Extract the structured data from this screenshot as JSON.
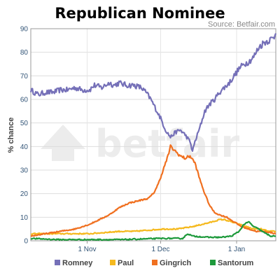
{
  "chart_data": {
    "type": "line",
    "title": "Republican Nominee",
    "source": "Source: Betfair.com",
    "watermark": "betfair",
    "ylabel": "% chance",
    "xlabel": "",
    "ylim": [
      0,
      90
    ],
    "yticks": [
      0,
      10,
      20,
      30,
      40,
      50,
      60,
      70,
      80,
      90
    ],
    "xlim": [
      "2011-10-09",
      "2012-01-17"
    ],
    "xticks": [
      {
        "date": "2011-11-01",
        "label": "1 Nov"
      },
      {
        "date": "2011-12-01",
        "label": "1 Dec"
      },
      {
        "date": "2012-01-01",
        "label": "1 Jan"
      }
    ],
    "grid": true,
    "legend_position": "bottom",
    "series": [
      {
        "name": "Romney",
        "color": "#7570b8",
        "points": [
          [
            "2011-10-09",
            64
          ],
          [
            "2011-10-12",
            62
          ],
          [
            "2011-10-15",
            63
          ],
          [
            "2011-10-18",
            63
          ],
          [
            "2011-10-21",
            64
          ],
          [
            "2011-10-24",
            64
          ],
          [
            "2011-10-27",
            65
          ],
          [
            "2011-10-30",
            64
          ],
          [
            "2011-11-02",
            64
          ],
          [
            "2011-11-04",
            66
          ],
          [
            "2011-11-07",
            65
          ],
          [
            "2011-11-10",
            67
          ],
          [
            "2011-11-12",
            66
          ],
          [
            "2011-11-14",
            67
          ],
          [
            "2011-11-17",
            66
          ],
          [
            "2011-11-20",
            66
          ],
          [
            "2011-11-23",
            65
          ],
          [
            "2011-11-25",
            63
          ],
          [
            "2011-11-27",
            60
          ],
          [
            "2011-11-29",
            56
          ],
          [
            "2011-12-01",
            52
          ],
          [
            "2011-12-03",
            47
          ],
          [
            "2011-12-05",
            44
          ],
          [
            "2011-12-07",
            46
          ],
          [
            "2011-12-09",
            47
          ],
          [
            "2011-12-11",
            45
          ],
          [
            "2011-12-13",
            42
          ],
          [
            "2011-12-14",
            38
          ],
          [
            "2011-12-15",
            42
          ],
          [
            "2011-12-17",
            48
          ],
          [
            "2011-12-19",
            55
          ],
          [
            "2011-12-21",
            58
          ],
          [
            "2011-12-23",
            60
          ],
          [
            "2011-12-25",
            63
          ],
          [
            "2011-12-27",
            65
          ],
          [
            "2011-12-29",
            67
          ],
          [
            "2011-12-31",
            70
          ],
          [
            "2012-01-02",
            73
          ],
          [
            "2012-01-04",
            75
          ],
          [
            "2012-01-06",
            76
          ],
          [
            "2012-01-08",
            78
          ],
          [
            "2012-01-10",
            82
          ],
          [
            "2012-01-12",
            84
          ],
          [
            "2012-01-14",
            85
          ],
          [
            "2012-01-16",
            86
          ],
          [
            "2012-01-17",
            88
          ]
        ]
      },
      {
        "name": "Paul",
        "color": "#f5b91e",
        "points": [
          [
            "2011-10-09",
            3
          ],
          [
            "2011-10-15",
            3
          ],
          [
            "2011-10-21",
            3
          ],
          [
            "2011-10-27",
            3
          ],
          [
            "2011-11-02",
            3
          ],
          [
            "2011-11-08",
            3.5
          ],
          [
            "2011-11-14",
            4
          ],
          [
            "2011-11-20",
            4
          ],
          [
            "2011-11-26",
            4.5
          ],
          [
            "2011-12-02",
            5
          ],
          [
            "2011-12-08",
            5
          ],
          [
            "2011-12-14",
            6
          ],
          [
            "2011-12-18",
            7
          ],
          [
            "2011-12-22",
            8
          ],
          [
            "2011-12-25",
            9
          ],
          [
            "2011-12-27",
            9
          ],
          [
            "2011-12-30",
            8
          ],
          [
            "2012-01-02",
            7
          ],
          [
            "2012-01-05",
            6
          ],
          [
            "2012-01-08",
            5
          ],
          [
            "2012-01-11",
            5
          ],
          [
            "2012-01-14",
            4
          ],
          [
            "2012-01-17",
            4
          ]
        ]
      },
      {
        "name": "Gingrich",
        "color": "#f07020",
        "points": [
          [
            "2011-10-09",
            2
          ],
          [
            "2011-10-15",
            3
          ],
          [
            "2011-10-21",
            4
          ],
          [
            "2011-10-27",
            5
          ],
          [
            "2011-11-02",
            7
          ],
          [
            "2011-11-06",
            9
          ],
          [
            "2011-11-10",
            11
          ],
          [
            "2011-11-14",
            14
          ],
          [
            "2011-11-18",
            16
          ],
          [
            "2011-11-22",
            17
          ],
          [
            "2011-11-26",
            18
          ],
          [
            "2011-11-28",
            20
          ],
          [
            "2011-11-30",
            24
          ],
          [
            "2011-12-02",
            30
          ],
          [
            "2011-12-04",
            36
          ],
          [
            "2011-12-05",
            40
          ],
          [
            "2011-12-07",
            38
          ],
          [
            "2011-12-09",
            36
          ],
          [
            "2011-12-11",
            35
          ],
          [
            "2011-12-13",
            36
          ],
          [
            "2011-12-15",
            33
          ],
          [
            "2011-12-17",
            26
          ],
          [
            "2011-12-19",
            20
          ],
          [
            "2011-12-21",
            15
          ],
          [
            "2011-12-23",
            12
          ],
          [
            "2011-12-25",
            11
          ],
          [
            "2011-12-28",
            10
          ],
          [
            "2011-12-31",
            8
          ],
          [
            "2012-01-03",
            6
          ],
          [
            "2012-01-06",
            5
          ],
          [
            "2012-01-09",
            4
          ],
          [
            "2012-01-12",
            4
          ],
          [
            "2012-01-15",
            3.5
          ],
          [
            "2012-01-17",
            3
          ]
        ]
      },
      {
        "name": "Santorum",
        "color": "#1e9a3c",
        "points": [
          [
            "2011-10-09",
            1
          ],
          [
            "2011-10-20",
            0.5
          ],
          [
            "2011-11-01",
            0.5
          ],
          [
            "2011-11-15",
            0.5
          ],
          [
            "2011-12-01",
            1
          ],
          [
            "2011-12-10",
            1
          ],
          [
            "2011-12-12",
            3
          ],
          [
            "2011-12-14",
            2
          ],
          [
            "2011-12-20",
            1.5
          ],
          [
            "2011-12-26",
            1.5
          ],
          [
            "2011-12-30",
            2
          ],
          [
            "2012-01-02",
            4
          ],
          [
            "2012-01-04",
            7
          ],
          [
            "2012-01-06",
            8
          ],
          [
            "2012-01-08",
            6
          ],
          [
            "2012-01-10",
            5
          ],
          [
            "2012-01-13",
            3
          ],
          [
            "2012-01-15",
            2
          ],
          [
            "2012-01-17",
            2
          ]
        ]
      }
    ]
  }
}
